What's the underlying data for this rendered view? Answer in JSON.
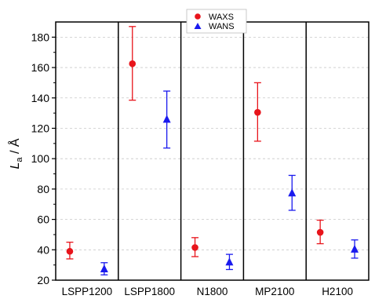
{
  "chart_data": {
    "type": "scatter",
    "ylabel_main": "L",
    "ylabel_sub": "a",
    "ylabel_unit": " / Å",
    "ylim": [
      20,
      190
    ],
    "yticks": [
      20,
      40,
      60,
      80,
      100,
      120,
      140,
      160,
      180
    ],
    "grid": true,
    "legend_position": "top-center",
    "categories": [
      "LSPP1200",
      "LSPP1800",
      "N1800",
      "MP2100",
      "H2100"
    ],
    "series": [
      {
        "name": "WAXS",
        "marker": "circle",
        "color": "#e8141b",
        "values": [
          39,
          162.5,
          41.5,
          130.5,
          51.5
        ],
        "err_low": [
          34,
          138.5,
          35.5,
          111.5,
          44
        ],
        "err_high": [
          45,
          187,
          48,
          150,
          59.5
        ]
      },
      {
        "name": "WANS",
        "marker": "triangle",
        "color": "#1a1aee",
        "values": [
          27.5,
          126,
          32,
          77.5,
          40.5
        ],
        "err_low": [
          23.5,
          107,
          27,
          66,
          34.5
        ],
        "err_high": [
          31.5,
          144.5,
          37,
          89,
          46.5
        ]
      }
    ]
  }
}
